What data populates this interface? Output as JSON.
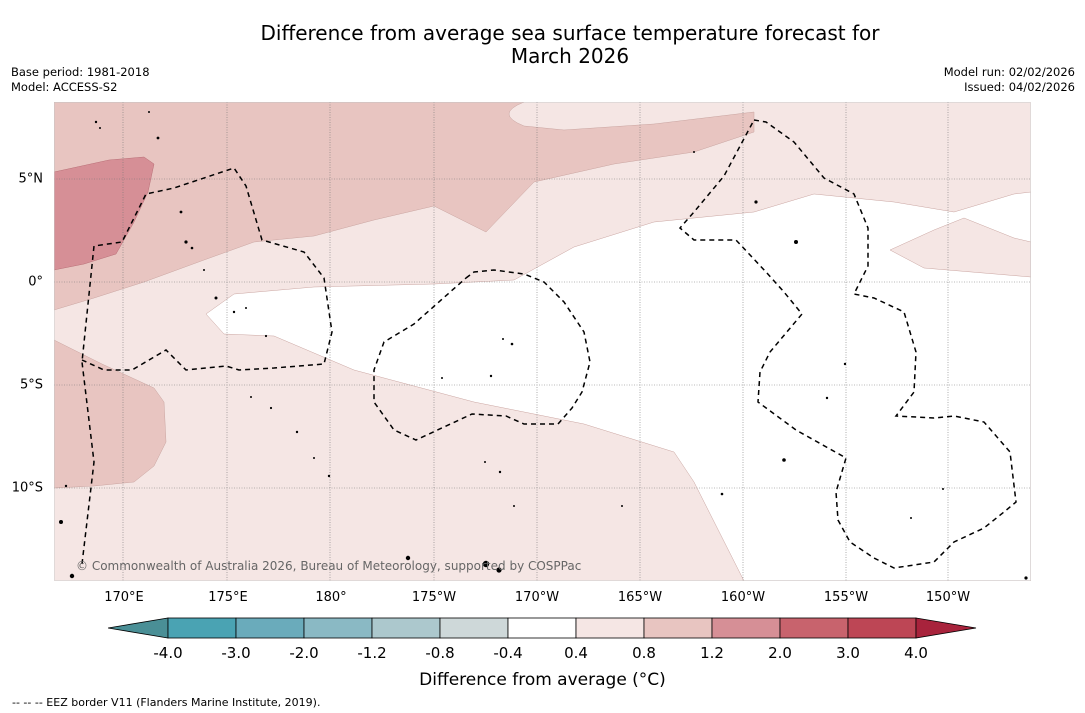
{
  "title": {
    "line1": "Difference from average sea surface temperature forecast for",
    "line2": "March 2026"
  },
  "meta": {
    "base_period": "Base period: 1981-2018",
    "model": "Model: ACCESS-S2",
    "model_run": "Model run: 02/02/2026",
    "issued": "Issued: 04/02/2026"
  },
  "map": {
    "lon_ticks": [
      "170°E",
      "175°E",
      "180°",
      "175°W",
      "170°W",
      "165°W",
      "160°W",
      "155°W",
      "150°W"
    ],
    "lat_ticks": [
      "5°N",
      "0°",
      "5°S",
      "10°S"
    ],
    "copyright": "© Commonwealth of Australia 2026, Bureau of Meteorology, supported by COSPPac"
  },
  "colorbar": {
    "labels": [
      "-4.0",
      "-3.0",
      "-2.0",
      "-1.2",
      "-0.8",
      "-0.4",
      "0.4",
      "0.8",
      "1.2",
      "2.0",
      "3.0",
      "4.0"
    ],
    "colors": [
      "#4a8f96",
      "#4aa3b3",
      "#6aabbb",
      "#8ab9c4",
      "#acc8cd",
      "#ced8d9",
      "#ffffff",
      "#f5e6e4",
      "#e8c5c1",
      "#d68f96",
      "#c8636d",
      "#bd4655",
      "#a8233c"
    ],
    "title": "Difference from average (°C)"
  },
  "footnote": "--  --  -- EEZ border V11 (Flanders Marine Institute, 2019)."
}
